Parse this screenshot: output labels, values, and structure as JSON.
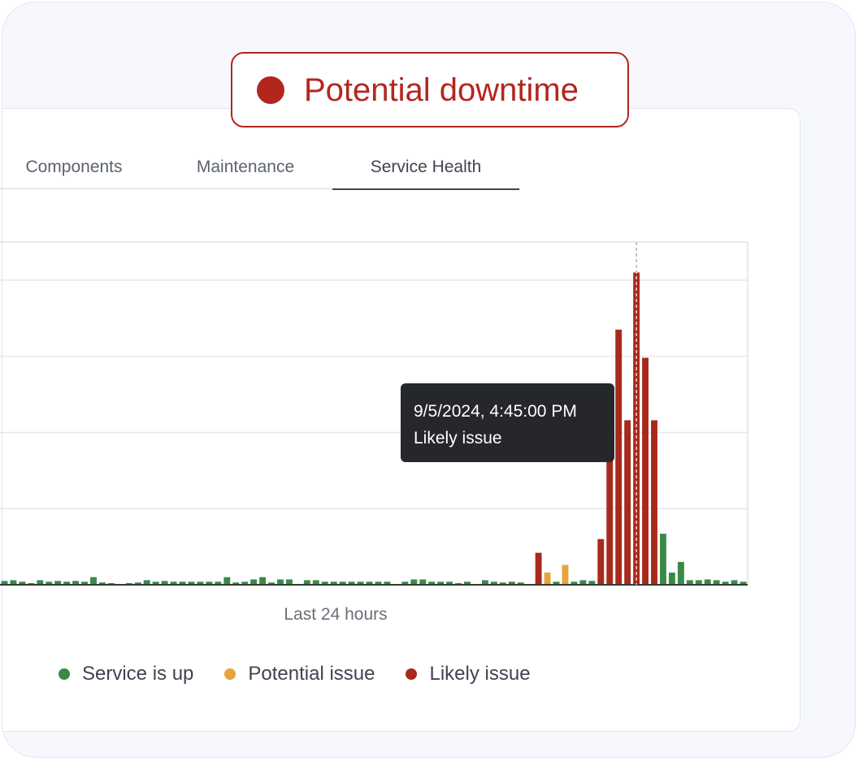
{
  "status": {
    "label": "Potential downtime",
    "color": "#b3261e"
  },
  "tabs": [
    {
      "label": "Components",
      "active": false
    },
    {
      "label": "Maintenance",
      "active": false
    },
    {
      "label": "Service Health",
      "active": true
    }
  ],
  "tooltip": {
    "time": "9/5/2024, 4:45:00 PM",
    "status": "Likely issue"
  },
  "legend": [
    {
      "label": "Service is up",
      "color": "#3a8a46"
    },
    {
      "label": "Potential issue",
      "color": "#e8a33b"
    },
    {
      "label": "Likely issue",
      "color": "#a8291c"
    }
  ],
  "chart_data": {
    "type": "bar",
    "xlabel": "Last 24 hours",
    "ylabel": "",
    "grid": true,
    "legend_position": "bottom",
    "ylim": [
      0,
      4.5
    ],
    "status_colors": {
      "up": "#3a8a46",
      "potential": "#e8a33b",
      "likely": "#a8291c"
    },
    "values": [
      0.05,
      0.06,
      0.04,
      0.02,
      0.06,
      0.04,
      0.05,
      0.04,
      0.05,
      0.04,
      0.1,
      0.03,
      0.02,
      0,
      0.02,
      0.03,
      0.06,
      0.04,
      0.05,
      0.04,
      0.04,
      0.04,
      0.04,
      0.04,
      0.04,
      0.1,
      0.03,
      0.04,
      0.07,
      0.1,
      0.03,
      0.07,
      0.07,
      0,
      0.06,
      0.06,
      0.04,
      0.04,
      0.04,
      0.04,
      0.04,
      0.04,
      0.04,
      0.04,
      0,
      0.04,
      0.07,
      0.07,
      0.04,
      0.04,
      0.04,
      0.02,
      0.04,
      0,
      0.06,
      0.04,
      0.03,
      0.04,
      0.03,
      0,
      0.42,
      0.16,
      0.04,
      0.26,
      0.04,
      0.06,
      0.05,
      0.6,
      1.95,
      3.35,
      2.16,
      4.1,
      2.98,
      2.16,
      0.67,
      0.16,
      0.3,
      0.06,
      0.06,
      0.07,
      0.06,
      0.04,
      0.06,
      0.04
    ],
    "status": [
      "up",
      "up",
      "up",
      "up",
      "up",
      "up",
      "up",
      "up",
      "up",
      "up",
      "up",
      "up",
      "up",
      "up",
      "up",
      "up",
      "up",
      "up",
      "up",
      "up",
      "up",
      "up",
      "up",
      "up",
      "up",
      "up",
      "up",
      "up",
      "up",
      "up",
      "up",
      "up",
      "up",
      "up",
      "up",
      "up",
      "up",
      "up",
      "up",
      "up",
      "up",
      "up",
      "up",
      "up",
      "up",
      "up",
      "up",
      "up",
      "up",
      "up",
      "up",
      "up",
      "up",
      "up",
      "up",
      "up",
      "up",
      "up",
      "up",
      "up",
      "likely",
      "potential",
      "up",
      "potential",
      "up",
      "up",
      "up",
      "likely",
      "likely",
      "likely",
      "likely",
      "likely",
      "likely",
      "likely",
      "up",
      "up",
      "up",
      "up",
      "up",
      "up",
      "up",
      "up",
      "up",
      "up"
    ],
    "highlight_index": 71
  }
}
